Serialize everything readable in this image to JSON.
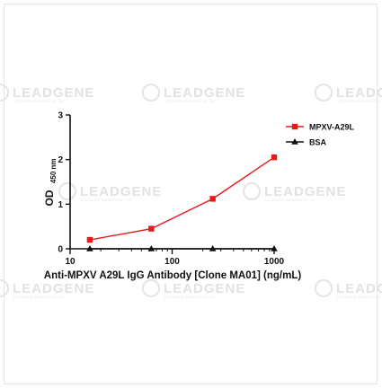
{
  "watermark": {
    "text": "LEADGENE",
    "subtext": "LEADGENE BIOMEDICAL, INC."
  },
  "chart_data": {
    "type": "line",
    "x_scale": "log",
    "xlim": [
      10,
      1000
    ],
    "ylim": [
      0,
      3
    ],
    "x_ticks": [
      10,
      100,
      1000
    ],
    "x_tick_labels": [
      "10",
      "100",
      "1000"
    ],
    "y_ticks": [
      0,
      1,
      2,
      3
    ],
    "y_tick_labels": [
      "0",
      "1",
      "2",
      "3"
    ],
    "xlabel": "Anti-MPXV A29L IgG Antibody [Clone MA01] (ng/mL)",
    "ylabel": "OD",
    "ylabel_sub": "450 nm",
    "legend_position": "top-right",
    "grid": false,
    "series": [
      {
        "name": "MPXV-A29L",
        "color": "#e8191b",
        "marker": "square",
        "x": [
          15.6,
          62.5,
          250,
          1000
        ],
        "y": [
          0.2,
          0.45,
          1.12,
          2.05
        ]
      },
      {
        "name": "BSA",
        "color": "#111111",
        "marker": "triangle",
        "x": [
          15.6,
          62.5,
          250,
          1000
        ],
        "y": [
          0.0,
          0.0,
          0.0,
          0.0
        ]
      }
    ]
  }
}
